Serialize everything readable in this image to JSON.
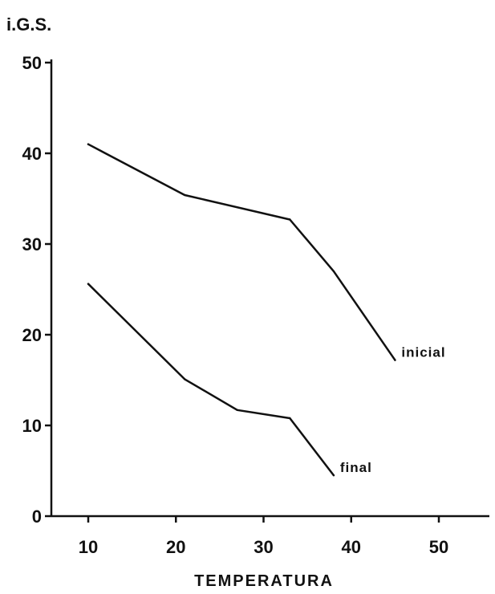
{
  "chart_data": {
    "type": "line",
    "ylabel": "i.G.S.",
    "xlabel": "TEMPERATURA",
    "xlim": [
      5,
      55
    ],
    "ylim": [
      0,
      50
    ],
    "x_ticks": [
      10,
      20,
      30,
      40,
      50
    ],
    "y_ticks": [
      0,
      10,
      20,
      30,
      40,
      50
    ],
    "grid": false,
    "series": [
      {
        "name": "inicial",
        "x": [
          10,
          21,
          33,
          38,
          45
        ],
        "y": [
          41,
          35.4,
          32.7,
          27,
          17.2
        ]
      },
      {
        "name": "final",
        "x": [
          10,
          21,
          27,
          33,
          38
        ],
        "y": [
          25.6,
          15.1,
          11.7,
          10.8,
          4.5
        ]
      }
    ]
  }
}
